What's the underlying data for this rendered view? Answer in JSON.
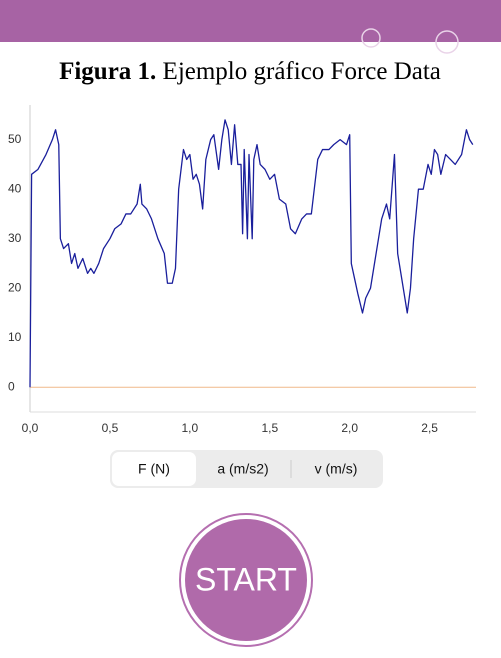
{
  "caption": {
    "label": "Figura 1.",
    "text": " Ejemplo gráfico Force Data"
  },
  "segments": [
    "F (N)",
    "a (m/s2)",
    "v (m/s)"
  ],
  "button": "START",
  "chart_data": {
    "type": "line",
    "x": [
      0,
      0.01,
      0.05,
      0.1,
      0.14,
      0.16,
      0.18,
      0.19,
      0.21,
      0.24,
      0.26,
      0.28,
      0.3,
      0.33,
      0.36,
      0.38,
      0.4,
      0.43,
      0.46,
      0.5,
      0.53,
      0.57,
      0.6,
      0.63,
      0.67,
      0.69,
      0.7,
      0.73,
      0.76,
      0.8,
      0.84,
      0.86,
      0.89,
      0.91,
      0.93,
      0.96,
      0.98,
      1.0,
      1.02,
      1.04,
      1.06,
      1.08,
      1.1,
      1.13,
      1.15,
      1.18,
      1.2,
      1.22,
      1.24,
      1.26,
      1.28,
      1.3,
      1.32,
      1.33,
      1.34,
      1.36,
      1.37,
      1.39,
      1.4,
      1.42,
      1.44,
      1.47,
      1.5,
      1.53,
      1.56,
      1.6,
      1.63,
      1.66,
      1.7,
      1.73,
      1.76,
      1.8,
      1.83,
      1.87,
      1.9,
      1.94,
      1.98,
      2.0,
      2.01,
      2.03,
      2.05,
      2.08,
      2.1,
      2.13,
      2.16,
      2.18,
      2.2,
      2.23,
      2.25,
      2.28,
      2.3,
      2.33,
      2.36,
      2.38,
      2.4,
      2.43,
      2.46,
      2.49,
      2.51,
      2.53,
      2.55,
      2.57,
      2.6,
      2.63,
      2.66,
      2.7,
      2.73,
      2.75,
      2.77
    ],
    "series": [
      {
        "color": "#1a1f9c",
        "values": [
          0,
          43,
          44,
          47,
          50,
          52,
          49,
          30,
          28,
          29,
          25,
          27,
          24,
          26,
          23,
          24,
          23,
          25,
          28,
          30,
          32,
          33,
          35,
          35,
          37,
          41,
          37,
          36,
          34,
          30,
          27,
          21,
          21,
          24,
          40,
          48,
          46,
          47,
          42,
          43,
          41,
          36,
          46,
          50,
          51,
          44,
          50,
          54,
          52,
          45,
          53,
          45,
          45,
          31,
          48,
          30,
          47,
          30,
          46,
          49,
          45,
          44,
          42,
          43,
          38,
          37,
          32,
          31,
          34,
          35,
          35,
          46,
          48,
          48,
          49,
          50,
          49,
          51,
          25,
          22,
          19,
          15,
          18,
          20,
          26,
          30,
          34,
          37,
          34,
          47,
          27,
          21,
          15,
          20,
          30,
          40,
          40,
          45,
          43,
          48,
          47,
          43,
          47,
          46,
          45,
          47,
          52,
          50,
          49
        ]
      }
    ],
    "xlim": [
      0,
      2.79
    ],
    "ylim": [
      -5,
      57
    ],
    "xticks": [
      {
        "value": 0,
        "label": "0,0"
      },
      {
        "value": 0.5,
        "label": "0,5"
      },
      {
        "value": 1,
        "label": "1,0"
      },
      {
        "value": 1.5,
        "label": "1,5"
      },
      {
        "value": 2,
        "label": "2,0"
      },
      {
        "value": 2.5,
        "label": "2,5"
      }
    ],
    "yticks": [
      0,
      10,
      20,
      30,
      40,
      50
    ]
  }
}
